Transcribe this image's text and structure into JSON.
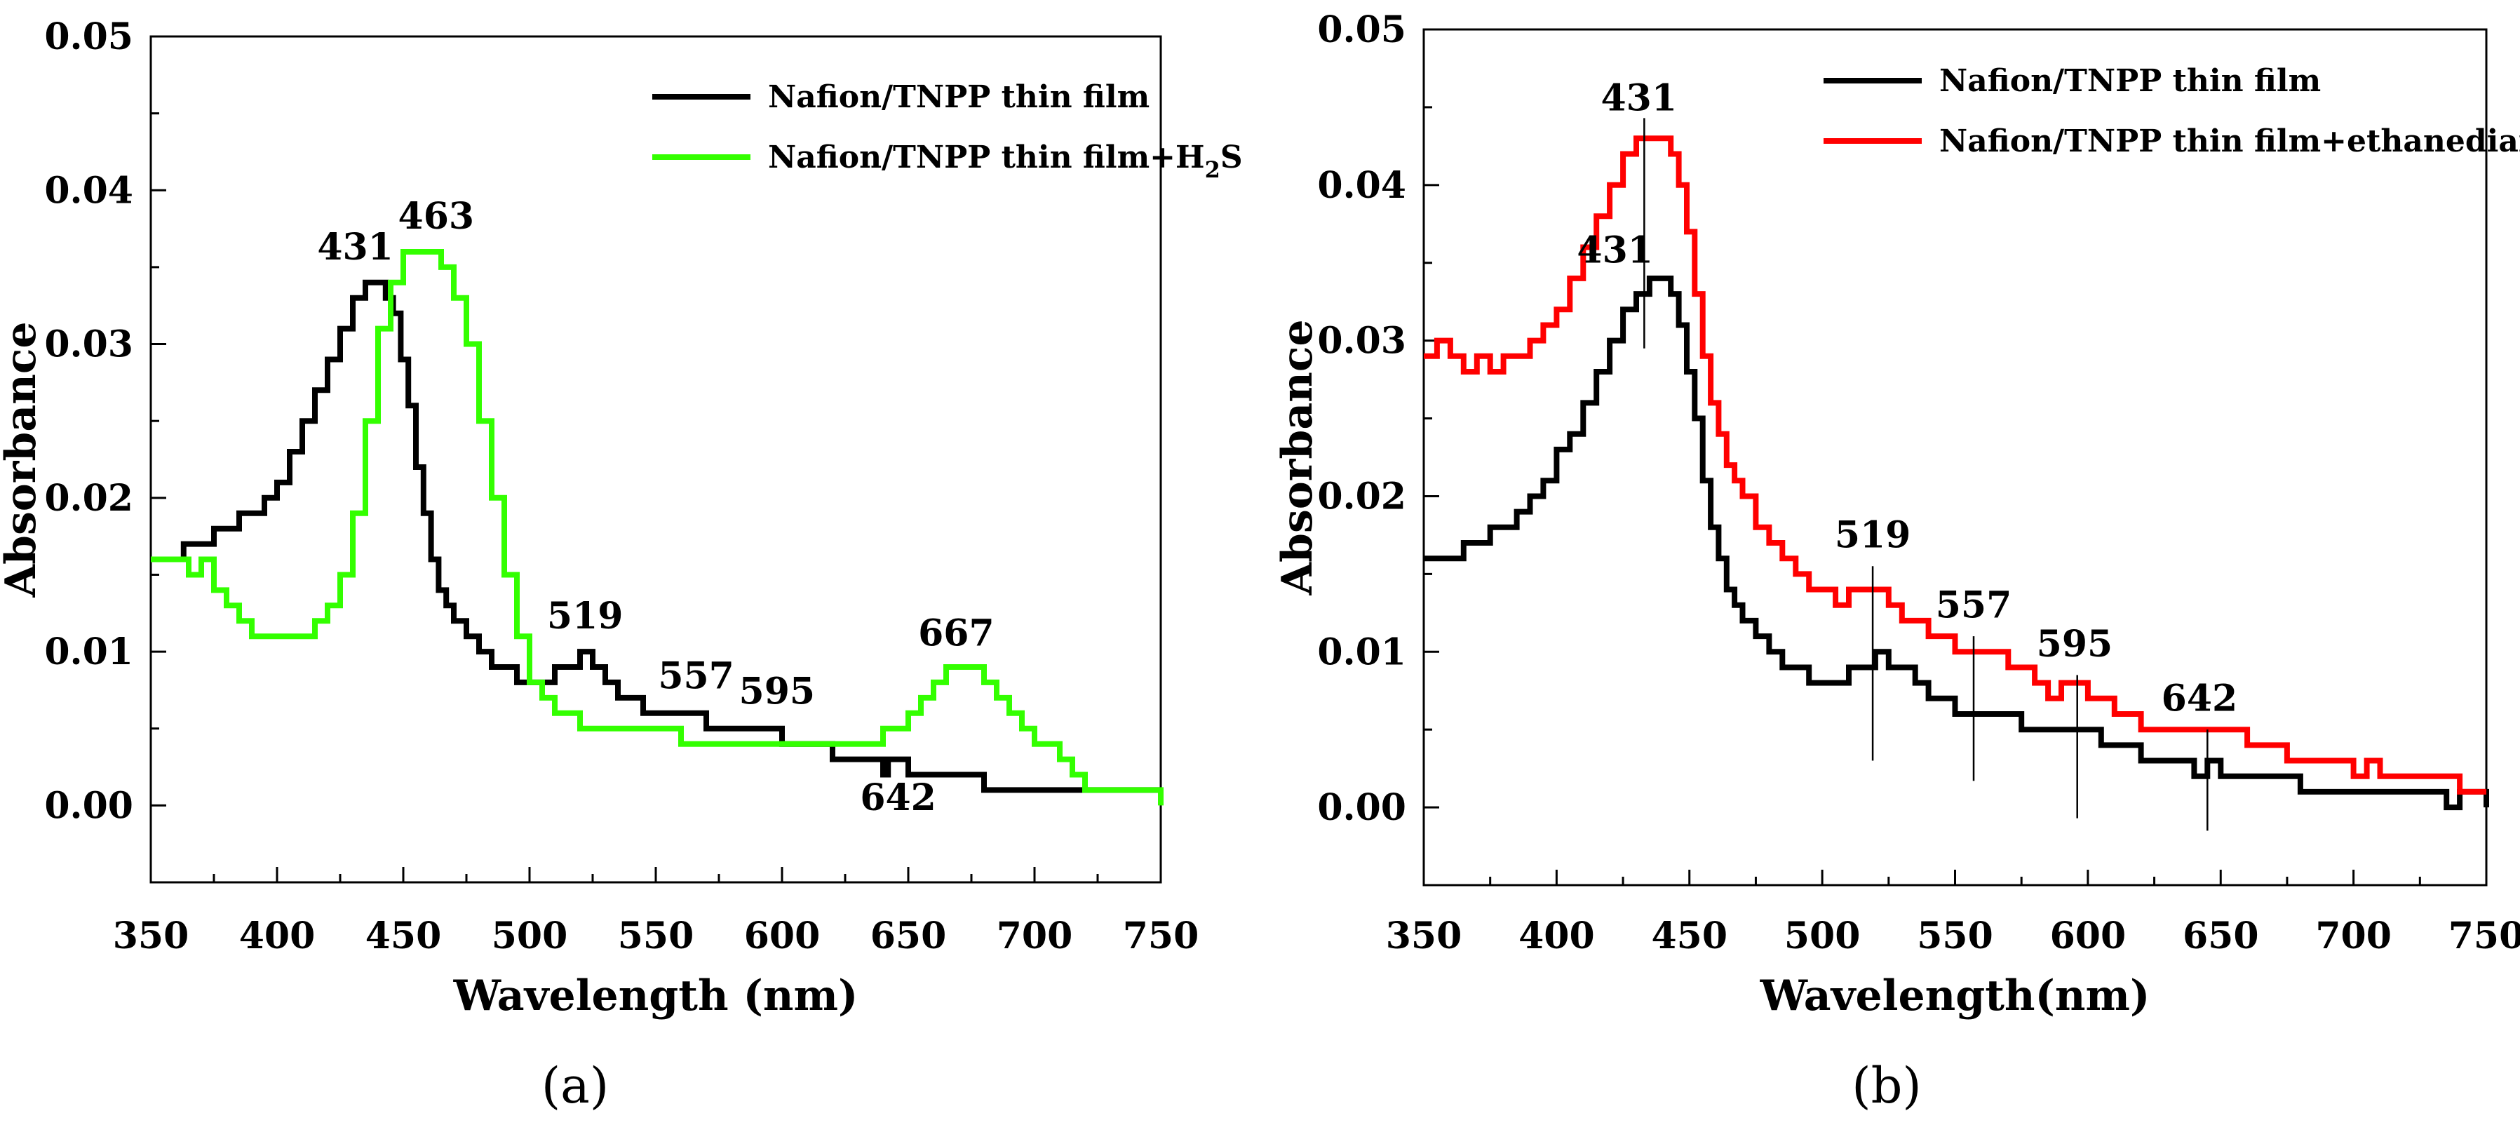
{
  "chart_data": [
    {
      "panel": "a",
      "panel_label": "(a)",
      "panel_letter": "a",
      "type": "line",
      "xlabel": "Wavelength (nm)",
      "ylabel": "Absorbance",
      "xlim": [
        350,
        750
      ],
      "ylim": [
        -0.005,
        0.05
      ],
      "xticks": [
        350,
        400,
        450,
        500,
        550,
        600,
        650,
        700,
        750
      ],
      "xtick_labels": [
        "350",
        "400",
        "450",
        "500",
        "550",
        "600",
        "650",
        "700",
        "750"
      ],
      "yticks": [
        0.0,
        0.01,
        0.02,
        0.03,
        0.04,
        0.05
      ],
      "ytick_labels": [
        "0.00",
        "0.01",
        "0.02",
        "0.03",
        "0.04",
        "0.05"
      ],
      "legend": "top-right",
      "series": [
        {
          "name": "Nafion/TNPP thin film",
          "legend_main": "Nafion/TNPP thin film",
          "legend_sub": "",
          "legend_tail": "",
          "color": "#000000",
          "x": [
            350,
            360,
            363,
            370,
            375,
            380,
            385,
            390,
            395,
            400,
            405,
            410,
            415,
            420,
            425,
            430,
            435,
            440,
            443,
            446,
            449,
            452,
            455,
            458,
            461,
            464,
            467,
            470,
            475,
            480,
            485,
            490,
            495,
            500,
            505,
            510,
            515,
            520,
            525,
            530,
            535,
            540,
            545,
            550,
            555,
            560,
            565,
            570,
            575,
            580,
            585,
            590,
            595,
            600,
            605,
            610,
            615,
            620,
            625,
            630,
            635,
            640,
            642,
            645,
            650,
            655,
            660,
            665,
            670,
            675,
            680,
            685,
            690,
            700,
            710,
            720,
            730,
            740,
            750
          ],
          "y": [
            0.016,
            0.016,
            0.017,
            0.017,
            0.018,
            0.018,
            0.019,
            0.019,
            0.02,
            0.021,
            0.023,
            0.025,
            0.027,
            0.029,
            0.031,
            0.033,
            0.034,
            0.034,
            0.033,
            0.032,
            0.029,
            0.026,
            0.022,
            0.019,
            0.016,
            0.014,
            0.013,
            0.012,
            0.011,
            0.01,
            0.009,
            0.009,
            0.008,
            0.008,
            0.008,
            0.009,
            0.009,
            0.01,
            0.009,
            0.008,
            0.007,
            0.007,
            0.006,
            0.006,
            0.006,
            0.006,
            0.006,
            0.005,
            0.005,
            0.005,
            0.005,
            0.005,
            0.005,
            0.004,
            0.004,
            0.004,
            0.004,
            0.003,
            0.003,
            0.003,
            0.003,
            0.002,
            0.003,
            0.003,
            0.002,
            0.002,
            0.002,
            0.002,
            0.002,
            0.002,
            0.001,
            0.001,
            0.001,
            0.001,
            0.001,
            0.001,
            0.001,
            0.001,
            0.001
          ]
        },
        {
          "name": "Nafion/TNPP thin film+H2S",
          "legend_main": "Nafion/TNPP thin film+H",
          "legend_sub": "2",
          "legend_tail": "S",
          "color": "#33ff00",
          "x": [
            350,
            360,
            365,
            370,
            375,
            380,
            385,
            390,
            395,
            400,
            405,
            410,
            415,
            420,
            425,
            430,
            435,
            440,
            445,
            450,
            455,
            460,
            465,
            470,
            475,
            480,
            485,
            490,
            495,
            500,
            505,
            510,
            515,
            520,
            525,
            530,
            535,
            540,
            550,
            560,
            570,
            580,
            590,
            600,
            610,
            620,
            630,
            640,
            650,
            655,
            660,
            665,
            670,
            675,
            680,
            685,
            690,
            695,
            700,
            710,
            715,
            720,
            730,
            740,
            750
          ],
          "y": [
            0.016,
            0.016,
            0.015,
            0.016,
            0.014,
            0.013,
            0.012,
            0.011,
            0.011,
            0.011,
            0.011,
            0.011,
            0.012,
            0.013,
            0.015,
            0.019,
            0.025,
            0.031,
            0.034,
            0.036,
            0.036,
            0.036,
            0.035,
            0.033,
            0.03,
            0.025,
            0.02,
            0.015,
            0.011,
            0.008,
            0.007,
            0.006,
            0.006,
            0.005,
            0.005,
            0.005,
            0.005,
            0.005,
            0.005,
            0.004,
            0.004,
            0.004,
            0.004,
            0.004,
            0.004,
            0.004,
            0.004,
            0.005,
            0.006,
            0.007,
            0.008,
            0.009,
            0.009,
            0.009,
            0.008,
            0.007,
            0.006,
            0.005,
            0.004,
            0.003,
            0.002,
            0.001,
            0.001,
            0.001,
            0.0
          ]
        }
      ],
      "annotations": [
        {
          "text": "431",
          "x": 431,
          "y": 0.0355
        },
        {
          "text": "463",
          "x": 463,
          "y": 0.0375
        },
        {
          "text": "519",
          "x": 522,
          "y": 0.0115
        },
        {
          "text": "557",
          "x": 566,
          "y": 0.0076
        },
        {
          "text": "595",
          "x": 598,
          "y": 0.0066
        },
        {
          "text": "667",
          "x": 669,
          "y": 0.0104
        },
        {
          "text": "642",
          "x": 646,
          "y": -0.0003
        }
      ]
    },
    {
      "panel": "b",
      "panel_label": "(b)",
      "panel_letter": "b",
      "type": "line",
      "xlabel": "Wavelength(nm)",
      "ylabel": "Absorbance",
      "xlim": [
        350,
        750
      ],
      "ylim": [
        -0.005,
        0.05
      ],
      "xticks": [
        350,
        400,
        450,
        500,
        550,
        600,
        650,
        700,
        750
      ],
      "xtick_labels": [
        "350",
        "400",
        "450",
        "500",
        "550",
        "600",
        "650",
        "700",
        "750"
      ],
      "yticks": [
        0.0,
        0.01,
        0.02,
        0.03,
        0.04,
        0.05
      ],
      "ytick_labels": [
        "0.00",
        "0.01",
        "0.02",
        "0.03",
        "0.04",
        "0.05"
      ],
      "legend": "top-right",
      "series": [
        {
          "name": "Nafion/TNPP thin film",
          "legend_main": "Nafion/TNPP thin film",
          "legend_sub": "",
          "legend_tail": "",
          "color": "#000000",
          "x": [
            350,
            360,
            365,
            375,
            385,
            390,
            395,
            400,
            405,
            410,
            415,
            420,
            425,
            430,
            435,
            440,
            443,
            446,
            449,
            452,
            455,
            458,
            461,
            464,
            467,
            470,
            475,
            480,
            485,
            490,
            495,
            500,
            505,
            510,
            515,
            520,
            525,
            530,
            535,
            540,
            545,
            550,
            555,
            560,
            565,
            570,
            575,
            580,
            585,
            590,
            595,
            600,
            605,
            610,
            615,
            620,
            625,
            630,
            635,
            640,
            645,
            650,
            655,
            660,
            665,
            670,
            675,
            680,
            690,
            700,
            710,
            720,
            730,
            735,
            740,
            750
          ],
          "y": [
            0.016,
            0.016,
            0.017,
            0.018,
            0.019,
            0.02,
            0.021,
            0.023,
            0.024,
            0.026,
            0.028,
            0.03,
            0.032,
            0.033,
            0.034,
            0.034,
            0.033,
            0.031,
            0.028,
            0.025,
            0.021,
            0.018,
            0.016,
            0.014,
            0.013,
            0.012,
            0.011,
            0.01,
            0.009,
            0.009,
            0.008,
            0.008,
            0.008,
            0.009,
            0.009,
            0.01,
            0.009,
            0.009,
            0.008,
            0.007,
            0.007,
            0.006,
            0.006,
            0.006,
            0.006,
            0.006,
            0.005,
            0.005,
            0.005,
            0.005,
            0.005,
            0.005,
            0.004,
            0.004,
            0.004,
            0.003,
            0.003,
            0.003,
            0.003,
            0.002,
            0.003,
            0.002,
            0.002,
            0.002,
            0.002,
            0.002,
            0.002,
            0.001,
            0.001,
            0.001,
            0.001,
            0.001,
            0.001,
            0.0,
            0.001,
            0.0
          ]
        },
        {
          "name": "Nafion/TNPP thin film+ethanediamine",
          "legend_main": "Nafion/TNPP thin film+ethanediamine",
          "legend_sub": "",
          "legend_tail": "",
          "color": "#ff0000",
          "x": [
            350,
            355,
            360,
            365,
            370,
            375,
            380,
            385,
            390,
            395,
            400,
            405,
            410,
            415,
            420,
            425,
            430,
            435,
            440,
            443,
            446,
            449,
            452,
            455,
            458,
            461,
            464,
            467,
            470,
            475,
            480,
            485,
            490,
            495,
            500,
            505,
            510,
            515,
            520,
            525,
            530,
            535,
            540,
            545,
            550,
            555,
            560,
            565,
            570,
            575,
            580,
            585,
            590,
            595,
            600,
            605,
            610,
            615,
            620,
            630,
            640,
            650,
            660,
            670,
            675,
            680,
            690,
            700,
            705,
            710,
            720,
            730,
            740,
            750
          ],
          "y": [
            0.029,
            0.03,
            0.029,
            0.028,
            0.029,
            0.028,
            0.029,
            0.029,
            0.03,
            0.031,
            0.032,
            0.034,
            0.036,
            0.038,
            0.04,
            0.042,
            0.043,
            0.043,
            0.043,
            0.042,
            0.04,
            0.037,
            0.033,
            0.029,
            0.026,
            0.024,
            0.022,
            0.021,
            0.02,
            0.018,
            0.017,
            0.016,
            0.015,
            0.014,
            0.014,
            0.013,
            0.014,
            0.014,
            0.014,
            0.013,
            0.012,
            0.012,
            0.011,
            0.011,
            0.01,
            0.01,
            0.01,
            0.01,
            0.009,
            0.009,
            0.008,
            0.007,
            0.008,
            0.008,
            0.007,
            0.007,
            0.006,
            0.006,
            0.005,
            0.005,
            0.005,
            0.005,
            0.004,
            0.004,
            0.003,
            0.003,
            0.003,
            0.002,
            0.003,
            0.002,
            0.002,
            0.002,
            0.001,
            0.001
          ]
        }
      ],
      "annotations": [
        {
          "text": "431",
          "x": 431,
          "y": 0.0448
        },
        {
          "text": "431",
          "x": 422,
          "y": 0.035
        },
        {
          "text": "519",
          "x": 519,
          "y": 0.0167
        },
        {
          "text": "557",
          "x": 557,
          "y": 0.0122
        },
        {
          "text": "595",
          "x": 595,
          "y": 0.0097
        },
        {
          "text": "642",
          "x": 642,
          "y": 0.0062
        }
      ],
      "marker_lines": [
        {
          "x": 433,
          "y_top": 0.0443,
          "y_bottom": 0.0295
        },
        {
          "x": 519,
          "y_top": 0.0155,
          "y_bottom": 0.003
        },
        {
          "x": 557,
          "y_top": 0.011,
          "y_bottom": 0.0017
        },
        {
          "x": 596,
          "y_top": 0.0085,
          "y_bottom": -0.0007
        },
        {
          "x": 645,
          "y_top": 0.005,
          "y_bottom": -0.0015
        }
      ]
    }
  ]
}
